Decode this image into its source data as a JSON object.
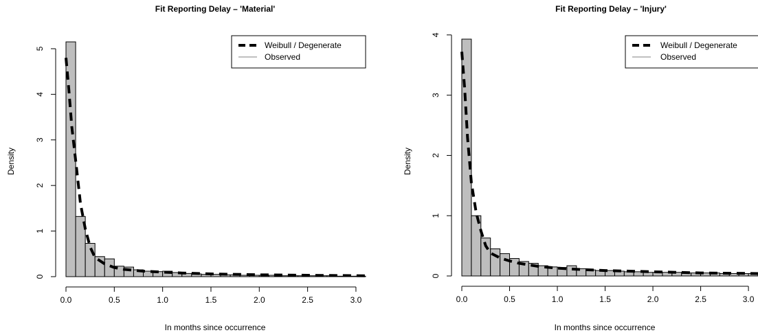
{
  "chart_data": [
    {
      "type": "bar",
      "title": "Fit Reporting Delay – 'Material'",
      "xlabel": "In months since occurrence",
      "ylabel": "Density",
      "xlim": [
        0,
        3.1
      ],
      "ylim": [
        0,
        5.15
      ],
      "xticks": [
        "0.0",
        "0.5",
        "1.0",
        "1.5",
        "2.0",
        "2.5",
        "3.0"
      ],
      "yticks": [
        "0",
        "1",
        "2",
        "3",
        "4",
        "5"
      ],
      "bin_width": 0.1,
      "values": [
        5.15,
        1.32,
        0.73,
        0.44,
        0.39,
        0.23,
        0.21,
        0.15,
        0.12,
        0.11,
        0.12,
        0.09,
        0.07,
        0.06,
        0.05,
        0.05,
        0.04,
        0.04,
        0.03,
        0.03,
        0.03,
        0.03,
        0.02,
        0.02,
        0.02,
        0.02,
        0.02,
        0.02,
        0.01,
        0.01,
        0.01
      ],
      "fit_x": [
        0.0,
        0.03,
        0.06,
        0.1,
        0.15,
        0.2,
        0.25,
        0.3,
        0.4,
        0.5,
        0.6,
        0.8,
        1.0,
        1.2,
        1.5,
        2.0,
        2.5,
        3.1
      ],
      "fit_y": [
        4.8,
        4.1,
        3.3,
        2.55,
        1.6,
        1.05,
        0.65,
        0.42,
        0.28,
        0.2,
        0.16,
        0.12,
        0.1,
        0.08,
        0.06,
        0.04,
        0.03,
        0.02
      ],
      "legend": [
        "Weibull / Degenerate",
        "Observed"
      ],
      "legend_position": "top-right",
      "grid": false
    },
    {
      "type": "bar",
      "title": "Fit Reporting Delay – 'Injury'",
      "xlabel": "In months since occurrence",
      "ylabel": "Density",
      "xlim": [
        0,
        3.1
      ],
      "ylim": [
        0,
        3.93
      ],
      "xticks": [
        "0.0",
        "0.5",
        "1.0",
        "1.5",
        "2.0",
        "2.5",
        "3.0"
      ],
      "yticks": [
        "0",
        "1",
        "2",
        "3",
        "4"
      ],
      "bin_width": 0.1,
      "values": [
        3.93,
        1.0,
        0.63,
        0.45,
        0.37,
        0.29,
        0.24,
        0.21,
        0.17,
        0.15,
        0.14,
        0.17,
        0.12,
        0.1,
        0.09,
        0.09,
        0.08,
        0.07,
        0.07,
        0.06,
        0.06,
        0.06,
        0.06,
        0.05,
        0.05,
        0.05,
        0.05,
        0.04,
        0.04,
        0.04,
        0.04
      ],
      "fit_x": [
        0.0,
        0.03,
        0.06,
        0.1,
        0.15,
        0.2,
        0.25,
        0.3,
        0.4,
        0.5,
        0.6,
        0.8,
        1.0,
        1.2,
        1.5,
        2.0,
        2.5,
        3.1
      ],
      "fit_y": [
        3.72,
        3.1,
        2.3,
        1.55,
        1.05,
        0.75,
        0.5,
        0.38,
        0.3,
        0.25,
        0.21,
        0.16,
        0.13,
        0.11,
        0.09,
        0.07,
        0.05,
        0.04
      ],
      "legend": [
        "Weibull / Degenerate",
        "Observed"
      ],
      "legend_position": "top-right",
      "grid": false
    }
  ]
}
